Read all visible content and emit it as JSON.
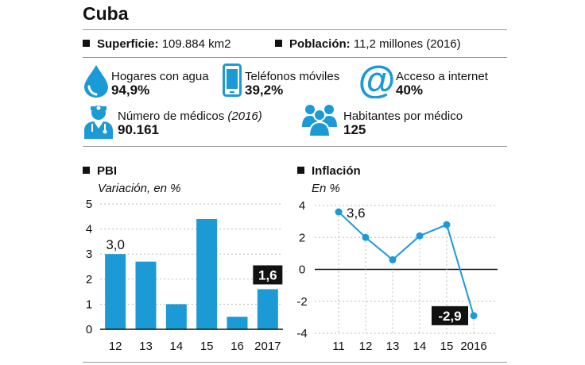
{
  "title": "Cuba",
  "facts": {
    "superficie_label": "Superficie:",
    "superficie_value": "109.884 km2",
    "poblacion_label": "Población:",
    "poblacion_value": "11,2 millones (2016)"
  },
  "stats": {
    "agua": {
      "label": "Hogares con agua",
      "value": "94,9%",
      "icon": "water-drop-icon"
    },
    "telefonos": {
      "label": "Teléfonos móviles",
      "value": "39,2%",
      "icon": "mobile-phone-icon"
    },
    "internet": {
      "label": "Acceso a internet",
      "value": "40%",
      "icon": "at-sign-icon"
    },
    "medicos": {
      "label": "Número de médicos",
      "label_year": "(2016)",
      "value": "90.161",
      "icon": "doctor-icon"
    },
    "habitantes": {
      "label": "Habitantes por médico",
      "value": "125",
      "icon": "people-group-icon"
    }
  },
  "colors": {
    "accent": "#1c9ad6",
    "text": "#111111",
    "label_bg": "#111111",
    "grid": "#bbbbbb"
  },
  "chart_data": [
    {
      "type": "bar",
      "title": "PBI",
      "subtitle": "Variación, en %",
      "categories": [
        "12",
        "13",
        "14",
        "15",
        "16",
        "2017"
      ],
      "values": [
        3.0,
        2.7,
        1.0,
        4.4,
        0.5,
        1.6
      ],
      "ylim": [
        0,
        5
      ],
      "yticks": [
        "0",
        "1",
        "2",
        "3",
        "4",
        "5"
      ],
      "annotations": [
        {
          "index": 0,
          "text": "3,0",
          "style": "plain"
        },
        {
          "index": 5,
          "text": "1,6",
          "style": "boxed"
        }
      ],
      "grid": true
    },
    {
      "type": "line",
      "title": "Inflación",
      "subtitle": "En %",
      "categories": [
        "11",
        "12",
        "13",
        "14",
        "15",
        "2016"
      ],
      "values": [
        3.6,
        2.0,
        0.6,
        2.1,
        2.8,
        -2.9
      ],
      "ylim": [
        -4,
        4
      ],
      "yticks": [
        "-4",
        "-2",
        "0",
        "2",
        "4"
      ],
      "annotations": [
        {
          "index": 0,
          "text": "3,6",
          "style": "plain"
        },
        {
          "index": 5,
          "text": "-2,9",
          "style": "boxed"
        }
      ],
      "grid": true
    }
  ]
}
